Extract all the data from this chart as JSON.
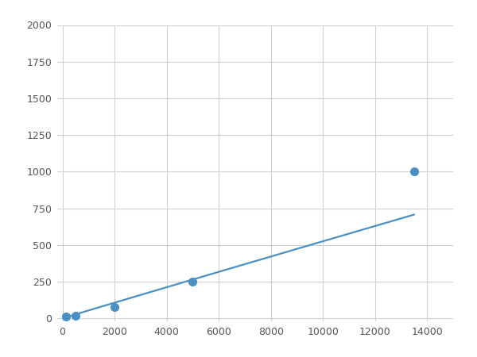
{
  "x_data": [
    125,
    500,
    2000,
    5000,
    13500
  ],
  "y_data": [
    10,
    20,
    75,
    250,
    1000
  ],
  "line_color": "#4a90c4",
  "marker_color": "#4a90c4",
  "marker_size": 7,
  "line_width": 1.6,
  "xlim": [
    -200,
    15000
  ],
  "ylim": [
    -20,
    2000
  ],
  "xticks": [
    0,
    2000,
    4000,
    6000,
    8000,
    10000,
    12000,
    14000
  ],
  "yticks": [
    0,
    250,
    500,
    750,
    1000,
    1250,
    1500,
    1750,
    2000
  ],
  "grid_color": "#d0d0d0",
  "background_color": "#ffffff",
  "fig_width": 6.0,
  "fig_height": 4.5,
  "dpi": 100
}
